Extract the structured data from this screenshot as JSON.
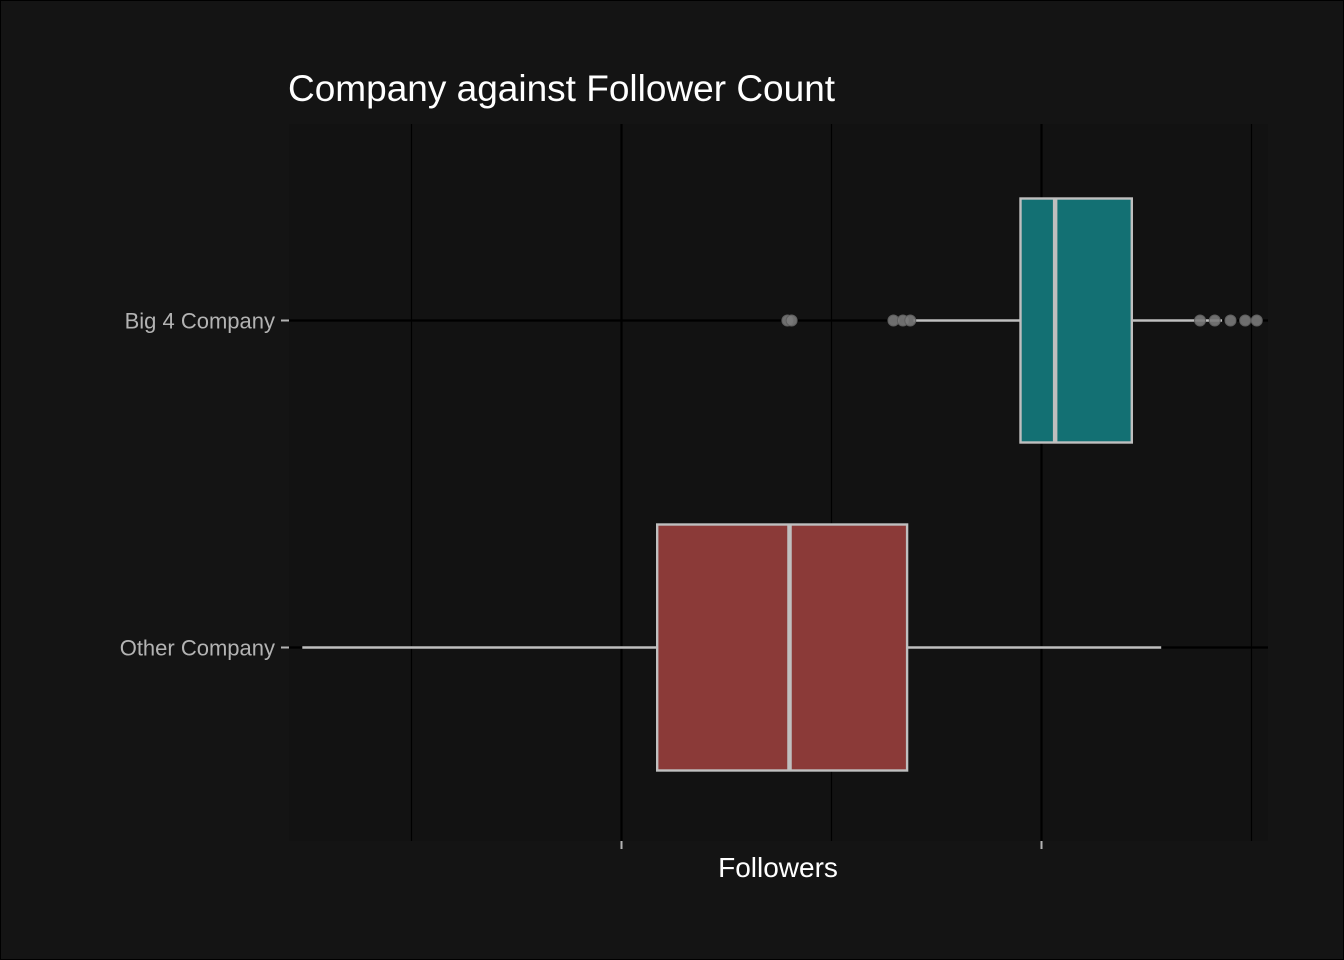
{
  "chart_data": {
    "type": "boxplot",
    "orientation": "horizontal",
    "title": "Company against Follower Count",
    "xlabel": "Followers",
    "ylabel": "",
    "xlim": [
      0,
      100
    ],
    "x_ticks_major": [
      35,
      75
    ],
    "x_gridlines_minor": [
      15,
      55,
      95
    ],
    "x_tick_labels": [],
    "grid": true,
    "categories": [
      "Big 4 Company",
      "Other Company"
    ],
    "series": [
      {
        "category": "Big 4 Company",
        "color": "#137073",
        "min": 62.8,
        "q1": 73.0,
        "median": 76.3,
        "q3": 83.6,
        "max": 92.2,
        "outliers": [
          50.8,
          51.2,
          60.9,
          61.8,
          62.5,
          90.1,
          91.5,
          93.0,
          94.4,
          95.5
        ]
      },
      {
        "category": "Other Company",
        "color": "#8b3a38",
        "min": 4.6,
        "q1": 38.4,
        "median": 51.0,
        "q3": 62.2,
        "max": 86.4,
        "outliers": []
      }
    ]
  }
}
